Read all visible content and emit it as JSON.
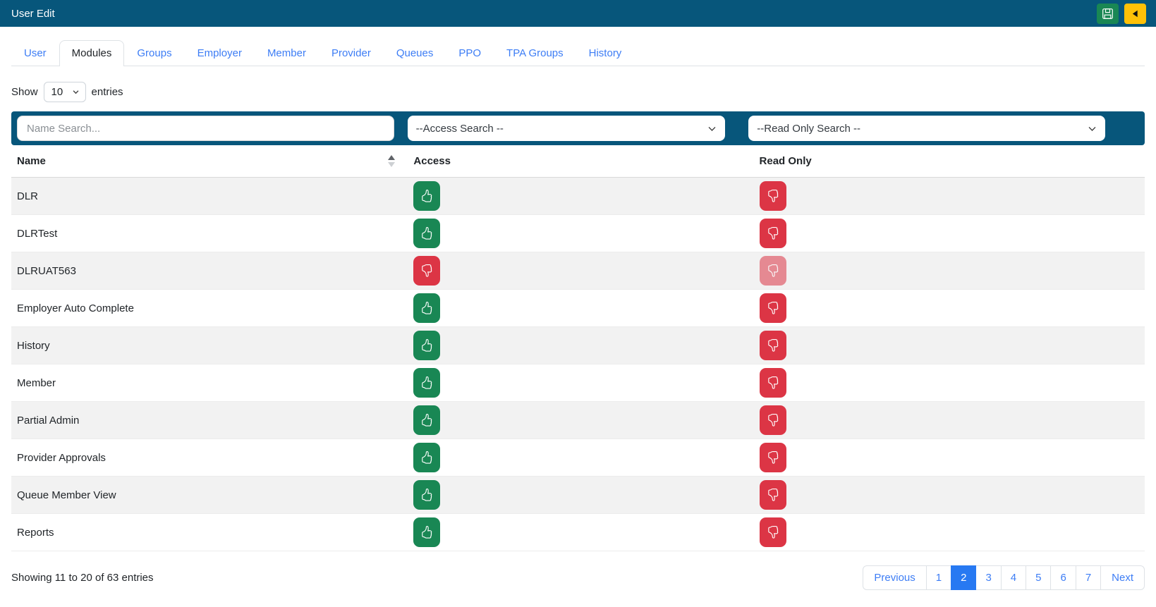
{
  "header": {
    "title": "User Edit"
  },
  "tabs": [
    {
      "label": "User",
      "active": false
    },
    {
      "label": "Modules",
      "active": true
    },
    {
      "label": "Groups",
      "active": false
    },
    {
      "label": "Employer",
      "active": false
    },
    {
      "label": "Member",
      "active": false
    },
    {
      "label": "Provider",
      "active": false
    },
    {
      "label": "Queues",
      "active": false
    },
    {
      "label": "PPO",
      "active": false
    },
    {
      "label": "TPA Groups",
      "active": false
    },
    {
      "label": "History",
      "active": false
    }
  ],
  "length_control": {
    "prefix": "Show",
    "value": "10",
    "suffix": "entries"
  },
  "filters": {
    "name_placeholder": "Name Search...",
    "access_value": "--Access Search --",
    "readonly_value": "--Read Only Search --"
  },
  "table": {
    "columns": [
      "Name",
      "Access",
      "Read Only"
    ],
    "sort": {
      "column": "Name",
      "direction": "ascending"
    },
    "rows": [
      {
        "name": "DLR",
        "access": "granted",
        "read_only": "denied",
        "read_only_disabled": false
      },
      {
        "name": "DLRTest",
        "access": "granted",
        "read_only": "denied",
        "read_only_disabled": false
      },
      {
        "name": "DLRUAT563",
        "access": "denied",
        "read_only": "denied",
        "read_only_disabled": true
      },
      {
        "name": "Employer Auto Complete",
        "access": "granted",
        "read_only": "denied",
        "read_only_disabled": false
      },
      {
        "name": "History",
        "access": "granted",
        "read_only": "denied",
        "read_only_disabled": false
      },
      {
        "name": "Member",
        "access": "granted",
        "read_only": "denied",
        "read_only_disabled": false
      },
      {
        "name": "Partial Admin",
        "access": "granted",
        "read_only": "denied",
        "read_only_disabled": false
      },
      {
        "name": "Provider Approvals",
        "access": "granted",
        "read_only": "denied",
        "read_only_disabled": false
      },
      {
        "name": "Queue Member View",
        "access": "granted",
        "read_only": "denied",
        "read_only_disabled": false
      },
      {
        "name": "Reports",
        "access": "granted",
        "read_only": "denied",
        "read_only_disabled": false
      }
    ]
  },
  "footer": {
    "info": "Showing 11 to 20 of 63 entries",
    "pagination": [
      {
        "label": "Previous",
        "active": false
      },
      {
        "label": "1",
        "active": false
      },
      {
        "label": "2",
        "active": true
      },
      {
        "label": "3",
        "active": false
      },
      {
        "label": "4",
        "active": false
      },
      {
        "label": "5",
        "active": false
      },
      {
        "label": "6",
        "active": false
      },
      {
        "label": "7",
        "active": false
      },
      {
        "label": "Next",
        "active": false
      }
    ]
  },
  "colors": {
    "topbar_bg": "#07567B",
    "filter_bar_bg": "#07567B",
    "granted_green": "#198754",
    "denied_red": "#DC3545",
    "save_green": "#198754",
    "back_yellow": "#FFC107",
    "link_blue": "#3D7DF5",
    "active_page_bg": "#2779F2",
    "stripe_gray": "#F2F2F2"
  }
}
